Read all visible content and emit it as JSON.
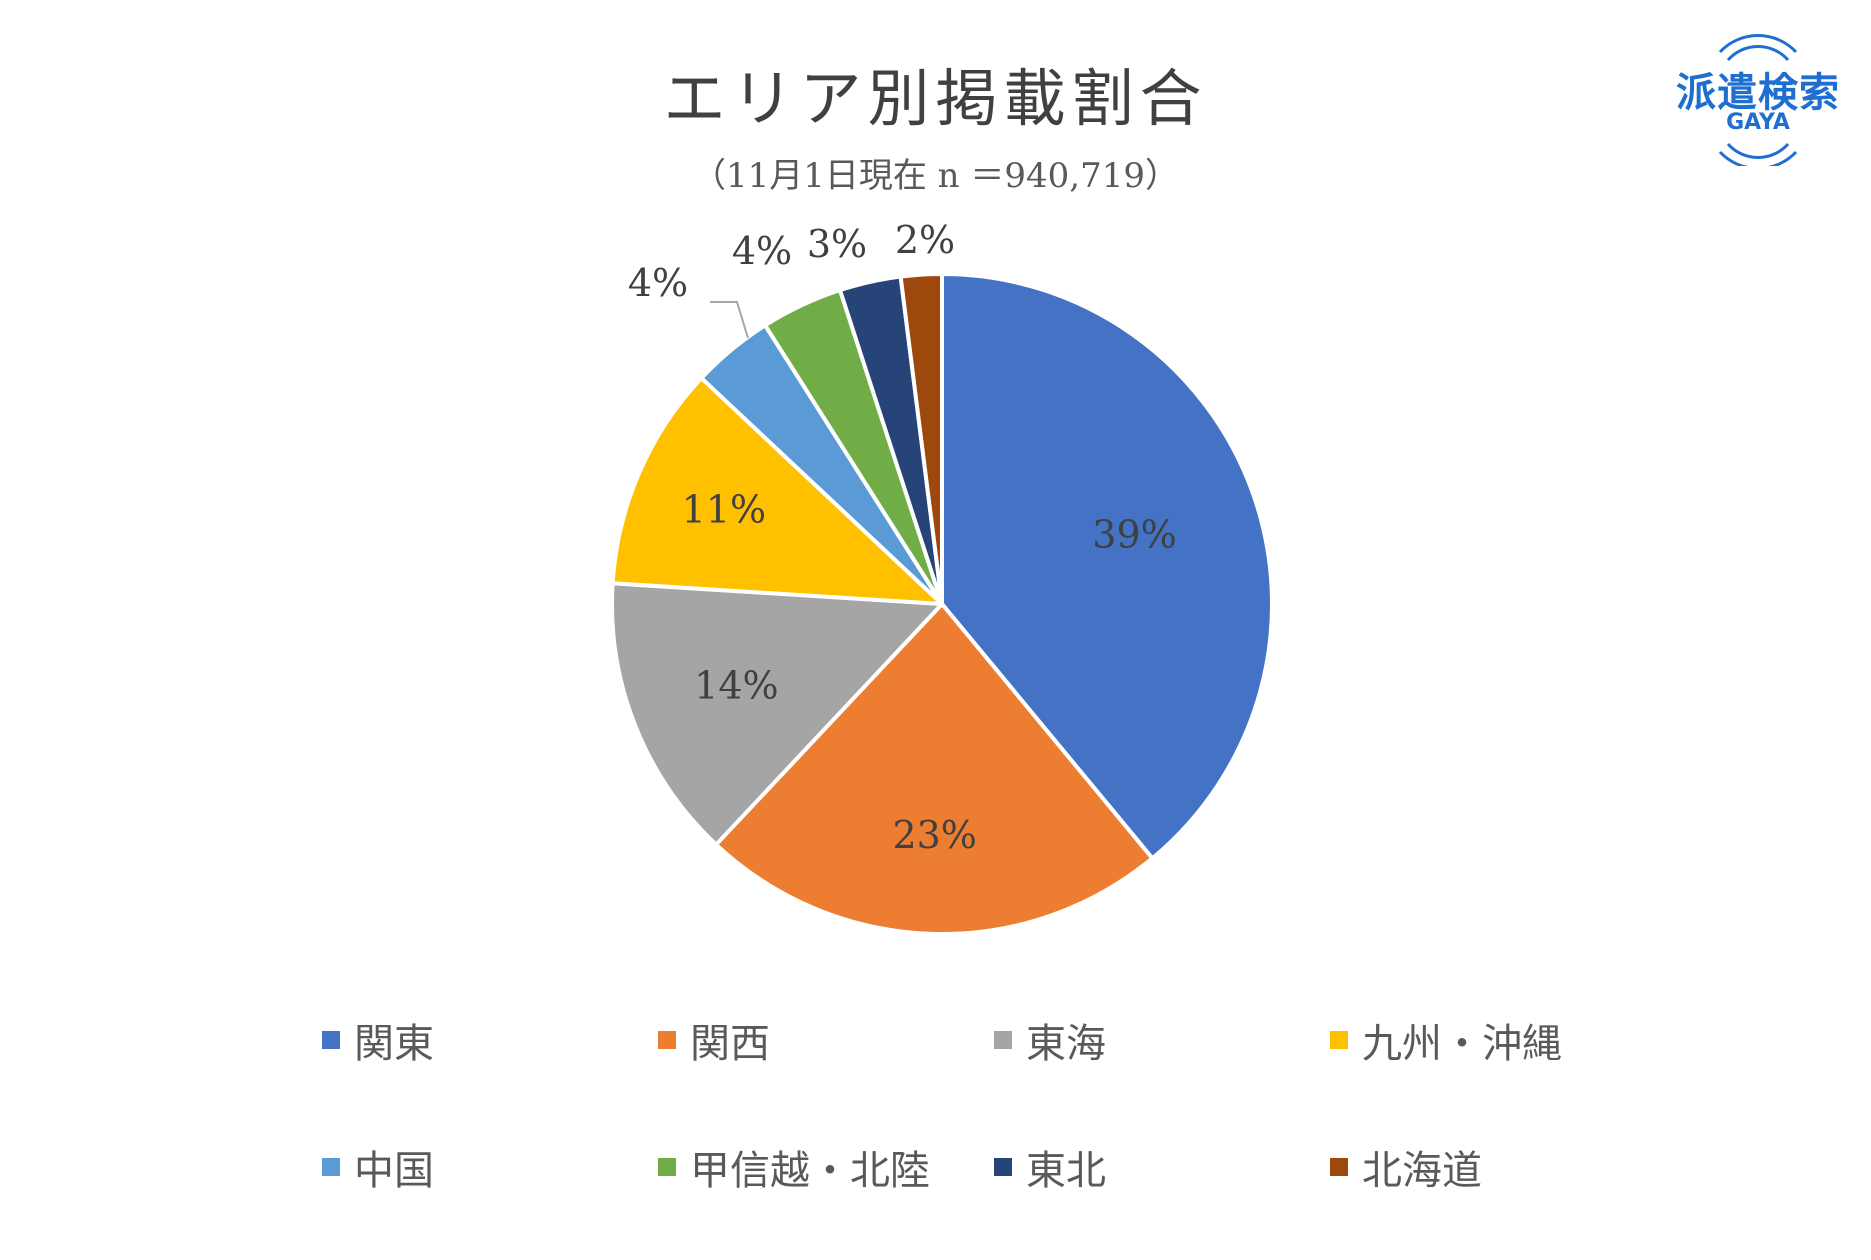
{
  "chart_data": {
    "type": "pie",
    "title": "エリア別掲載割合",
    "subtitle": "（11月1日現在 n ＝940,719）",
    "legend_position": "bottom",
    "slices": [
      {
        "label": "関東",
        "value": 39,
        "display": "39%",
        "color": "#4472C4"
      },
      {
        "label": "関西",
        "value": 23,
        "display": "23%",
        "color": "#ED7D31"
      },
      {
        "label": "東海",
        "value": 14,
        "display": "14%",
        "color": "#A5A5A5"
      },
      {
        "label": "九州・沖縄",
        "value": 11,
        "display": "11%",
        "color": "#FFC000"
      },
      {
        "label": "中国",
        "value": 4,
        "display": "4%",
        "color": "#5B9BD5"
      },
      {
        "label": "甲信越・北陸",
        "value": 4,
        "display": "4%",
        "color": "#70AD47"
      },
      {
        "label": "東北",
        "value": 3,
        "display": "3%",
        "color": "#264478"
      },
      {
        "label": "北海道",
        "value": 2,
        "display": "2%",
        "color": "#9E480E"
      }
    ]
  },
  "logo": {
    "text": "派遣検索",
    "sub": "GAYA",
    "color": "#1f6fd1"
  }
}
